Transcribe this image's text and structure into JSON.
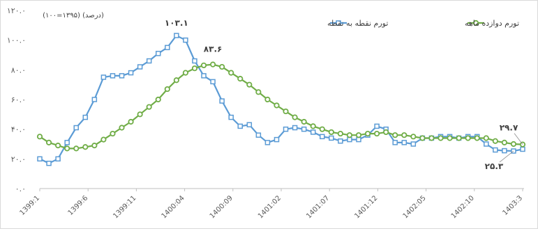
{
  "chart_data": {
    "type": "line",
    "header_note": "(درصد) (۱۳۹۵=۱۰۰)",
    "y_ticks": [
      "۰.۰",
      "۲۰.۰",
      "۴۰.۰",
      "۶۰.۰",
      "۸۰.۰",
      "۱۰۰.۰",
      "۱۲۰.۰"
    ],
    "ylim": [
      0,
      120
    ],
    "x_tick_labels": [
      "1399:1",
      "1399:6",
      "1399:11",
      "1400:04",
      "1400:09",
      "1401:02",
      "1401:07",
      "1401:12",
      "1402:05",
      "1402:10",
      "1403:3"
    ],
    "legend_position": "top",
    "grid": false,
    "series": [
      {
        "name": "تورم نقطه به نقطه",
        "color": "#5b9bd5",
        "marker": "square",
        "values": [
          20.0,
          17.0,
          20.0,
          31.0,
          41.0,
          48.0,
          60.0,
          75.0,
          76.0,
          76.0,
          78.0,
          82.0,
          86.0,
          91.0,
          95.0,
          103.1,
          100.0,
          86.0,
          76.0,
          72.0,
          59.0,
          48.0,
          42.0,
          43.0,
          36.0,
          31.0,
          33.0,
          40.0,
          41.0,
          40.0,
          38.0,
          35.0,
          34.0,
          32.0,
          33.0,
          33.0,
          36.0,
          42.0,
          40.0,
          31.0,
          31.0,
          30.0,
          34.0,
          34.0,
          35.0,
          35.0,
          34.0,
          35.0,
          35.0,
          30.0,
          26.0,
          25.5,
          25.3,
          26.5
        ]
      },
      {
        "name": "تورم دوازده ماهه",
        "color": "#70ad47",
        "marker": "circle",
        "values": [
          35.0,
          31.0,
          29.0,
          27.0,
          27.0,
          28.0,
          29.0,
          33.0,
          37.0,
          41.0,
          45.0,
          50.0,
          55.0,
          60.0,
          67.0,
          73.0,
          78.0,
          81.0,
          83.0,
          83.6,
          82.0,
          78.0,
          74.0,
          70.0,
          65.0,
          60.0,
          56.0,
          52.0,
          48.0,
          45.0,
          42.0,
          40.0,
          38.0,
          37.0,
          36.0,
          36.0,
          37.0,
          37.0,
          38.0,
          36.0,
          36.0,
          35.0,
          34.0,
          34.0,
          34.0,
          34.0,
          34.0,
          34.0,
          34.0,
          34.0,
          32.0,
          31.0,
          30.0,
          29.7
        ]
      }
    ],
    "annotations": [
      {
        "text": "۱۰۳.۱",
        "series": 0,
        "index": 15
      },
      {
        "text": "۸۳.۶",
        "series": 1,
        "index": 19
      },
      {
        "text": "۲۹.۷",
        "series": 1,
        "index": 53
      },
      {
        "text": "۲۵.۳",
        "series": 0,
        "index": 52
      }
    ]
  }
}
